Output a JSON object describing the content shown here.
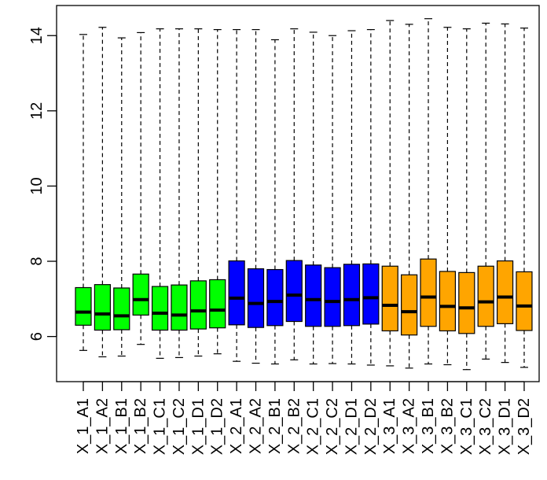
{
  "chart_data": {
    "type": "boxplot",
    "title": "",
    "xlabel": "",
    "ylabel": "",
    "ylim": [
      4.8,
      14.8
    ],
    "yticks": [
      6,
      8,
      10,
      12,
      14
    ],
    "ytick_labels": [
      "6",
      "8",
      "10",
      "12",
      "14"
    ],
    "grid": false,
    "legend": "none",
    "colors": {
      "X_1": "#00ff00",
      "X_2": "#0000ff",
      "X_3": "#ffa500",
      "outline": "#000000"
    },
    "categories": [
      "X_1_A1",
      "X_1_A2",
      "X_1_B1",
      "X_1_B2",
      "X_1_C1",
      "X_1_C2",
      "X_1_D1",
      "X_1_D2",
      "X_2_A1",
      "X_2_A2",
      "X_2_B1",
      "X_2_B2",
      "X_2_C1",
      "X_2_C2",
      "X_2_D1",
      "X_2_D2",
      "X_3_A1",
      "X_3_A2",
      "X_3_B1",
      "X_3_B2",
      "X_3_C1",
      "X_3_C2",
      "X_3_D1",
      "X_3_D2"
    ],
    "groups": [
      "X_1",
      "X_1",
      "X_1",
      "X_1",
      "X_1",
      "X_1",
      "X_1",
      "X_1",
      "X_2",
      "X_2",
      "X_2",
      "X_2",
      "X_2",
      "X_2",
      "X_2",
      "X_2",
      "X_3",
      "X_3",
      "X_3",
      "X_3",
      "X_3",
      "X_3",
      "X_3",
      "X_3"
    ],
    "boxes": [
      {
        "min": 5.63,
        "q1": 6.3,
        "median": 6.65,
        "q3": 7.3,
        "max": 14.03
      },
      {
        "min": 5.46,
        "q1": 6.17,
        "median": 6.6,
        "q3": 7.38,
        "max": 14.22
      },
      {
        "min": 5.48,
        "q1": 6.18,
        "median": 6.55,
        "q3": 7.29,
        "max": 13.94
      },
      {
        "min": 5.79,
        "q1": 6.57,
        "median": 6.98,
        "q3": 7.66,
        "max": 14.08
      },
      {
        "min": 5.42,
        "q1": 6.17,
        "median": 6.62,
        "q3": 7.33,
        "max": 14.18
      },
      {
        "min": 5.44,
        "q1": 6.17,
        "median": 6.57,
        "q3": 7.37,
        "max": 14.18
      },
      {
        "min": 5.48,
        "q1": 6.2,
        "median": 6.68,
        "q3": 7.48,
        "max": 14.18
      },
      {
        "min": 5.54,
        "q1": 6.23,
        "median": 6.7,
        "q3": 7.51,
        "max": 14.16
      },
      {
        "min": 5.34,
        "q1": 6.31,
        "median": 7.02,
        "q3": 8.01,
        "max": 14.16
      },
      {
        "min": 5.29,
        "q1": 6.24,
        "median": 6.88,
        "q3": 7.8,
        "max": 14.16
      },
      {
        "min": 5.27,
        "q1": 6.29,
        "median": 6.93,
        "q3": 7.78,
        "max": 13.89
      },
      {
        "min": 5.38,
        "q1": 6.4,
        "median": 7.1,
        "q3": 8.02,
        "max": 14.18
      },
      {
        "min": 5.27,
        "q1": 6.27,
        "median": 6.98,
        "q3": 7.9,
        "max": 14.09
      },
      {
        "min": 5.28,
        "q1": 6.27,
        "median": 6.93,
        "q3": 7.83,
        "max": 14.0
      },
      {
        "min": 5.27,
        "q1": 6.29,
        "median": 6.98,
        "q3": 7.92,
        "max": 14.13
      },
      {
        "min": 5.24,
        "q1": 6.33,
        "median": 7.03,
        "q3": 7.93,
        "max": 14.16
      },
      {
        "min": 5.22,
        "q1": 6.15,
        "median": 6.83,
        "q3": 7.87,
        "max": 14.4
      },
      {
        "min": 5.16,
        "q1": 6.04,
        "median": 6.66,
        "q3": 7.64,
        "max": 14.3
      },
      {
        "min": 5.27,
        "q1": 6.27,
        "median": 7.05,
        "q3": 8.06,
        "max": 14.45
      },
      {
        "min": 5.25,
        "q1": 6.15,
        "median": 6.8,
        "q3": 7.73,
        "max": 14.22
      },
      {
        "min": 5.12,
        "q1": 6.08,
        "median": 6.76,
        "q3": 7.7,
        "max": 14.18
      },
      {
        "min": 5.4,
        "q1": 6.27,
        "median": 6.92,
        "q3": 7.87,
        "max": 14.33
      },
      {
        "min": 5.31,
        "q1": 6.34,
        "median": 7.05,
        "q3": 8.01,
        "max": 14.31
      },
      {
        "min": 5.18,
        "q1": 6.16,
        "median": 6.81,
        "q3": 7.72,
        "max": 14.2
      }
    ]
  }
}
